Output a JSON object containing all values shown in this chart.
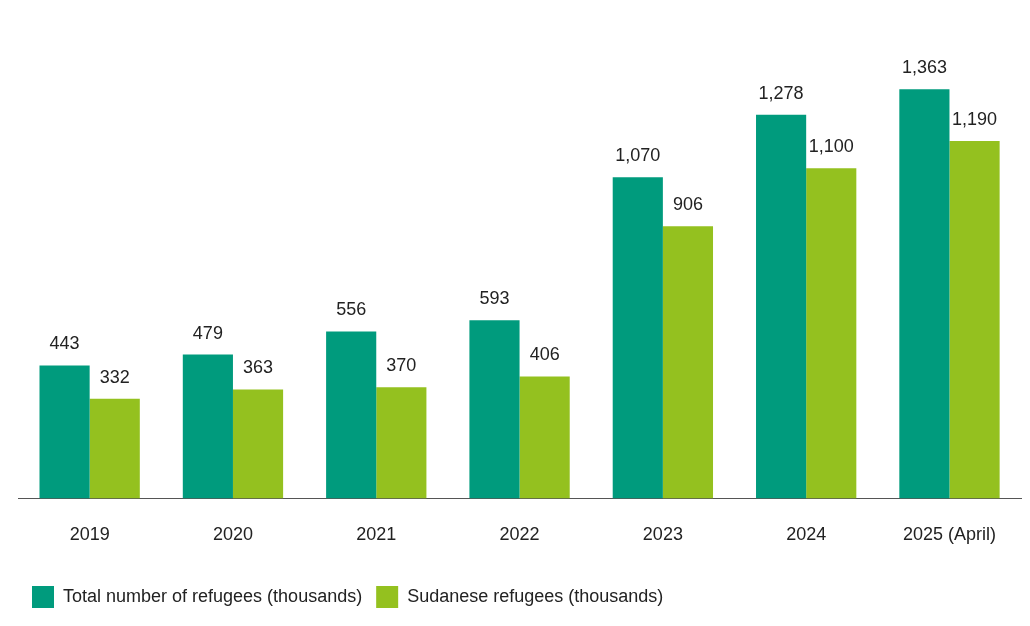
{
  "chart_data": {
    "type": "bar",
    "categories": [
      "2019",
      "2020",
      "2021",
      "2022",
      "2023",
      "2024",
      "2025 (April)"
    ],
    "series": [
      {
        "name": "Total number of refugees (thousands)",
        "color": "#009b7d",
        "values": [
          443,
          479,
          556,
          593,
          1070,
          1278,
          1363
        ],
        "value_labels": [
          "443",
          "479",
          "556",
          "593",
          "1,070",
          "1,278",
          "1,363"
        ]
      },
      {
        "name": "Sudanese refugees (thousands)",
        "color": "#94c11f",
        "values": [
          332,
          363,
          370,
          406,
          906,
          1100,
          1190
        ],
        "value_labels": [
          "332",
          "363",
          "370",
          "406",
          "906",
          "1,100",
          "1,190"
        ]
      }
    ],
    "legend": "bottom left",
    "grid": false
  }
}
